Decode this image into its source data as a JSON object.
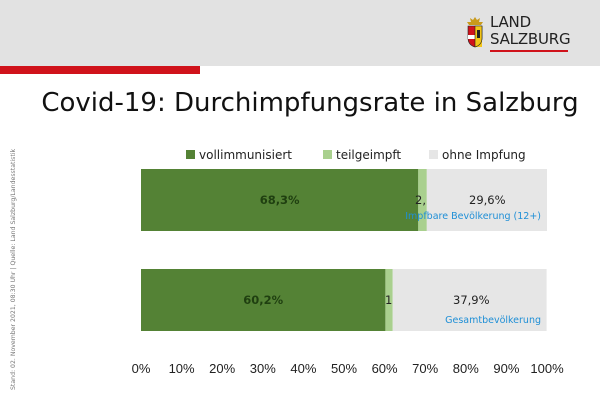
{
  "header": {
    "logo_line1": "LAND",
    "logo_line2": "SALZBURG",
    "colors": {
      "band": "#e2e2e2",
      "accent": "#d0121b"
    }
  },
  "title": "Covid-19: Durchimpfungsrate in Salzburg",
  "source_note": "Stand: 02. November 2021, 08:30 Uhr | Quelle: Land Salzburg/Landesstatistik",
  "chart_data": {
    "type": "bar",
    "orientation": "horizontal",
    "stacked": true,
    "categories": [
      "Impfbare Bevölkerung (12+)",
      "Gesamtbevölkerung"
    ],
    "series": [
      {
        "name": "vollimmunisiert",
        "values": [
          68.3,
          60.2
        ],
        "labels": [
          "68,3%",
          "60,2%"
        ],
        "color": "#548235"
      },
      {
        "name": "teilgeimpft",
        "values": [
          2.1,
          1.8
        ],
        "labels": [
          "2,1%",
          "1,8%"
        ],
        "color": "#a9d08e"
      },
      {
        "name": "ohne Impfung",
        "values": [
          29.6,
          37.9
        ],
        "labels": [
          "29,6%",
          "37,9%"
        ],
        "color": "#e6e6e6"
      }
    ],
    "x_ticks": [
      "0%",
      "10%",
      "20%",
      "30%",
      "40%",
      "50%",
      "60%",
      "70%",
      "80%",
      "90%",
      "100%"
    ],
    "xlim": [
      0,
      100
    ],
    "legend_position": "top",
    "grid": false
  }
}
